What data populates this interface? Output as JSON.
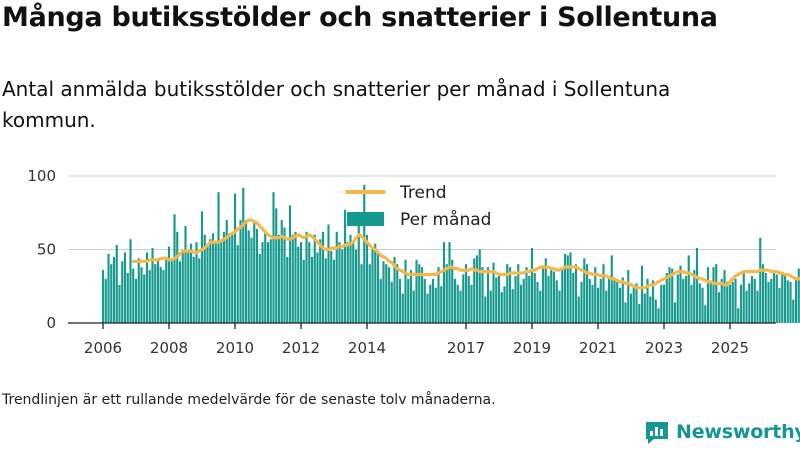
{
  "title": "Många butiksstölder och snatterier i Sollentuna",
  "subtitle": "Antal anmälda butiksstölder och snatterier per månad i Sollentuna kommun.",
  "footnote": "Trendlinjen är ett rullande medelvärde för de senaste tolv månaderna.",
  "brand": {
    "name": "Newsworthy",
    "icon": "newsworthy-logo-icon",
    "color": "#169595"
  },
  "chart_data": {
    "type": "bar",
    "x_unit": "month",
    "start": "2006-01",
    "end": "2025-02",
    "x_ticks": [
      "2006",
      "2008",
      "2010",
      "2012",
      "2014",
      "2017",
      "2019",
      "2021",
      "2023",
      "2025"
    ],
    "ylim": [
      0,
      100
    ],
    "y_ticks": [
      0,
      50,
      100
    ],
    "grid": true,
    "legend_position": "top-center",
    "colors": {
      "bars": "#169a90",
      "trend": "#f7b84b"
    },
    "series": [
      {
        "name": "Per månad",
        "kind": "bar",
        "values": [
          36,
          30,
          47,
          40,
          45,
          53,
          26,
          42,
          48,
          34,
          57,
          37,
          30,
          44,
          38,
          33,
          48,
          36,
          51,
          40,
          43,
          38,
          36,
          45,
          52,
          43,
          74,
          62,
          42,
          48,
          66,
          50,
          54,
          45,
          55,
          44,
          76,
          60,
          52,
          57,
          61,
          54,
          89,
          55,
          62,
          70,
          59,
          60,
          88,
          53,
          70,
          92,
          70,
          63,
          58,
          68,
          64,
          47,
          55,
          61,
          55,
          57,
          89,
          78,
          60,
          70,
          65,
          45,
          80,
          60,
          62,
          52,
          55,
          43,
          62,
          55,
          45,
          60,
          48,
          57,
          62,
          44,
          67,
          49,
          43,
          62,
          55,
          50,
          77,
          55,
          60,
          55,
          50,
          70,
          40,
          94,
          60,
          40,
          50,
          54,
          48,
          30,
          42,
          40,
          38,
          28,
          45,
          40,
          30,
          20,
          43,
          30,
          36,
          22,
          43,
          40,
          38,
          30,
          20,
          26,
          30,
          24,
          38,
          25,
          55,
          40,
          55,
          43,
          30,
          26,
          22,
          33,
          40,
          32,
          26,
          44,
          46,
          50,
          38,
          18,
          38,
          22,
          41,
          31,
          32,
          21,
          25,
          40,
          38,
          23,
          32,
          40,
          26,
          30,
          38,
          32,
          51,
          34,
          28,
          22,
          38,
          44,
          32,
          36,
          35,
          29,
          22,
          38,
          47,
          46,
          48,
          34,
          40,
          18,
          28,
          44,
          40,
          30,
          26,
          38,
          24,
          30,
          40,
          22,
          32,
          46,
          30,
          28,
          24,
          31,
          14,
          36,
          20,
          26,
          27,
          13,
          39,
          20,
          30,
          18,
          29,
          16,
          10,
          26,
          26,
          34,
          38,
          37,
          14,
          33,
          39,
          30,
          32,
          46,
          26,
          36,
          51,
          27,
          24,
          12,
          38,
          28,
          38,
          40,
          21,
          30,
          36,
          28,
          26,
          28,
          30,
          10,
          26,
          34,
          22,
          27,
          32,
          30,
          22,
          58,
          40,
          34,
          28,
          30,
          36,
          33,
          24,
          34,
          34,
          29,
          28,
          16,
          30,
          37,
          23,
          44,
          24,
          25,
          24,
          31,
          34,
          42,
          52,
          21,
          22,
          26,
          68
        ]
      },
      {
        "name": "Trend",
        "kind": "line",
        "values": [
          42,
          42,
          42,
          42,
          42,
          42,
          42,
          42,
          42,
          42,
          42,
          42,
          42,
          42,
          42,
          42,
          42,
          43,
          43,
          43,
          43,
          44,
          44,
          44,
          43,
          43,
          44,
          45,
          47,
          49,
          49,
          49,
          49,
          48,
          48,
          49,
          50,
          51,
          53,
          55,
          55,
          55,
          55,
          56,
          57,
          58,
          60,
          61,
          62,
          64,
          65,
          67,
          69,
          70,
          70,
          69,
          68,
          66,
          64,
          62,
          60,
          59,
          58,
          58,
          58,
          59,
          58,
          57,
          57,
          58,
          59,
          60,
          59,
          58,
          59,
          60,
          59,
          57,
          55,
          53,
          51,
          50,
          50,
          51,
          51,
          51,
          52,
          52,
          53,
          53,
          54,
          55,
          58,
          60,
          59,
          57,
          55,
          53,
          51,
          50,
          48,
          46,
          45,
          44,
          42,
          41,
          39,
          37,
          36,
          35,
          34,
          33,
          33,
          33,
          33,
          33,
          33,
          33,
          33,
          33,
          33,
          33,
          34,
          35,
          36,
          37,
          38,
          38,
          37,
          37,
          36,
          36,
          36,
          36,
          37,
          36,
          36,
          35,
          35,
          35,
          35,
          35,
          35,
          34,
          33,
          33,
          33,
          33,
          34,
          34,
          34,
          34,
          34,
          34,
          35,
          35,
          36,
          36,
          37,
          38,
          38,
          38,
          38,
          37,
          37,
          36,
          36,
          37,
          38,
          38,
          38,
          38,
          38,
          37,
          36,
          35,
          34,
          34,
          33,
          33,
          33,
          32,
          32,
          32,
          31,
          30,
          30,
          29,
          28,
          28,
          27,
          27,
          26,
          25,
          24,
          24,
          24,
          24,
          25,
          26,
          26,
          27,
          28,
          29,
          30,
          31,
          32,
          33,
          34,
          35,
          35,
          35,
          34,
          34,
          33,
          32,
          31,
          30,
          30,
          29,
          28,
          28,
          27,
          27,
          27,
          27,
          26,
          26,
          28,
          30,
          32,
          33,
          34,
          35,
          35,
          35,
          35,
          35,
          35,
          36,
          36,
          36,
          36,
          35,
          35,
          35,
          34,
          34,
          33,
          33,
          32,
          31,
          30,
          30,
          31,
          32,
          31,
          31,
          32,
          33
        ]
      }
    ]
  }
}
